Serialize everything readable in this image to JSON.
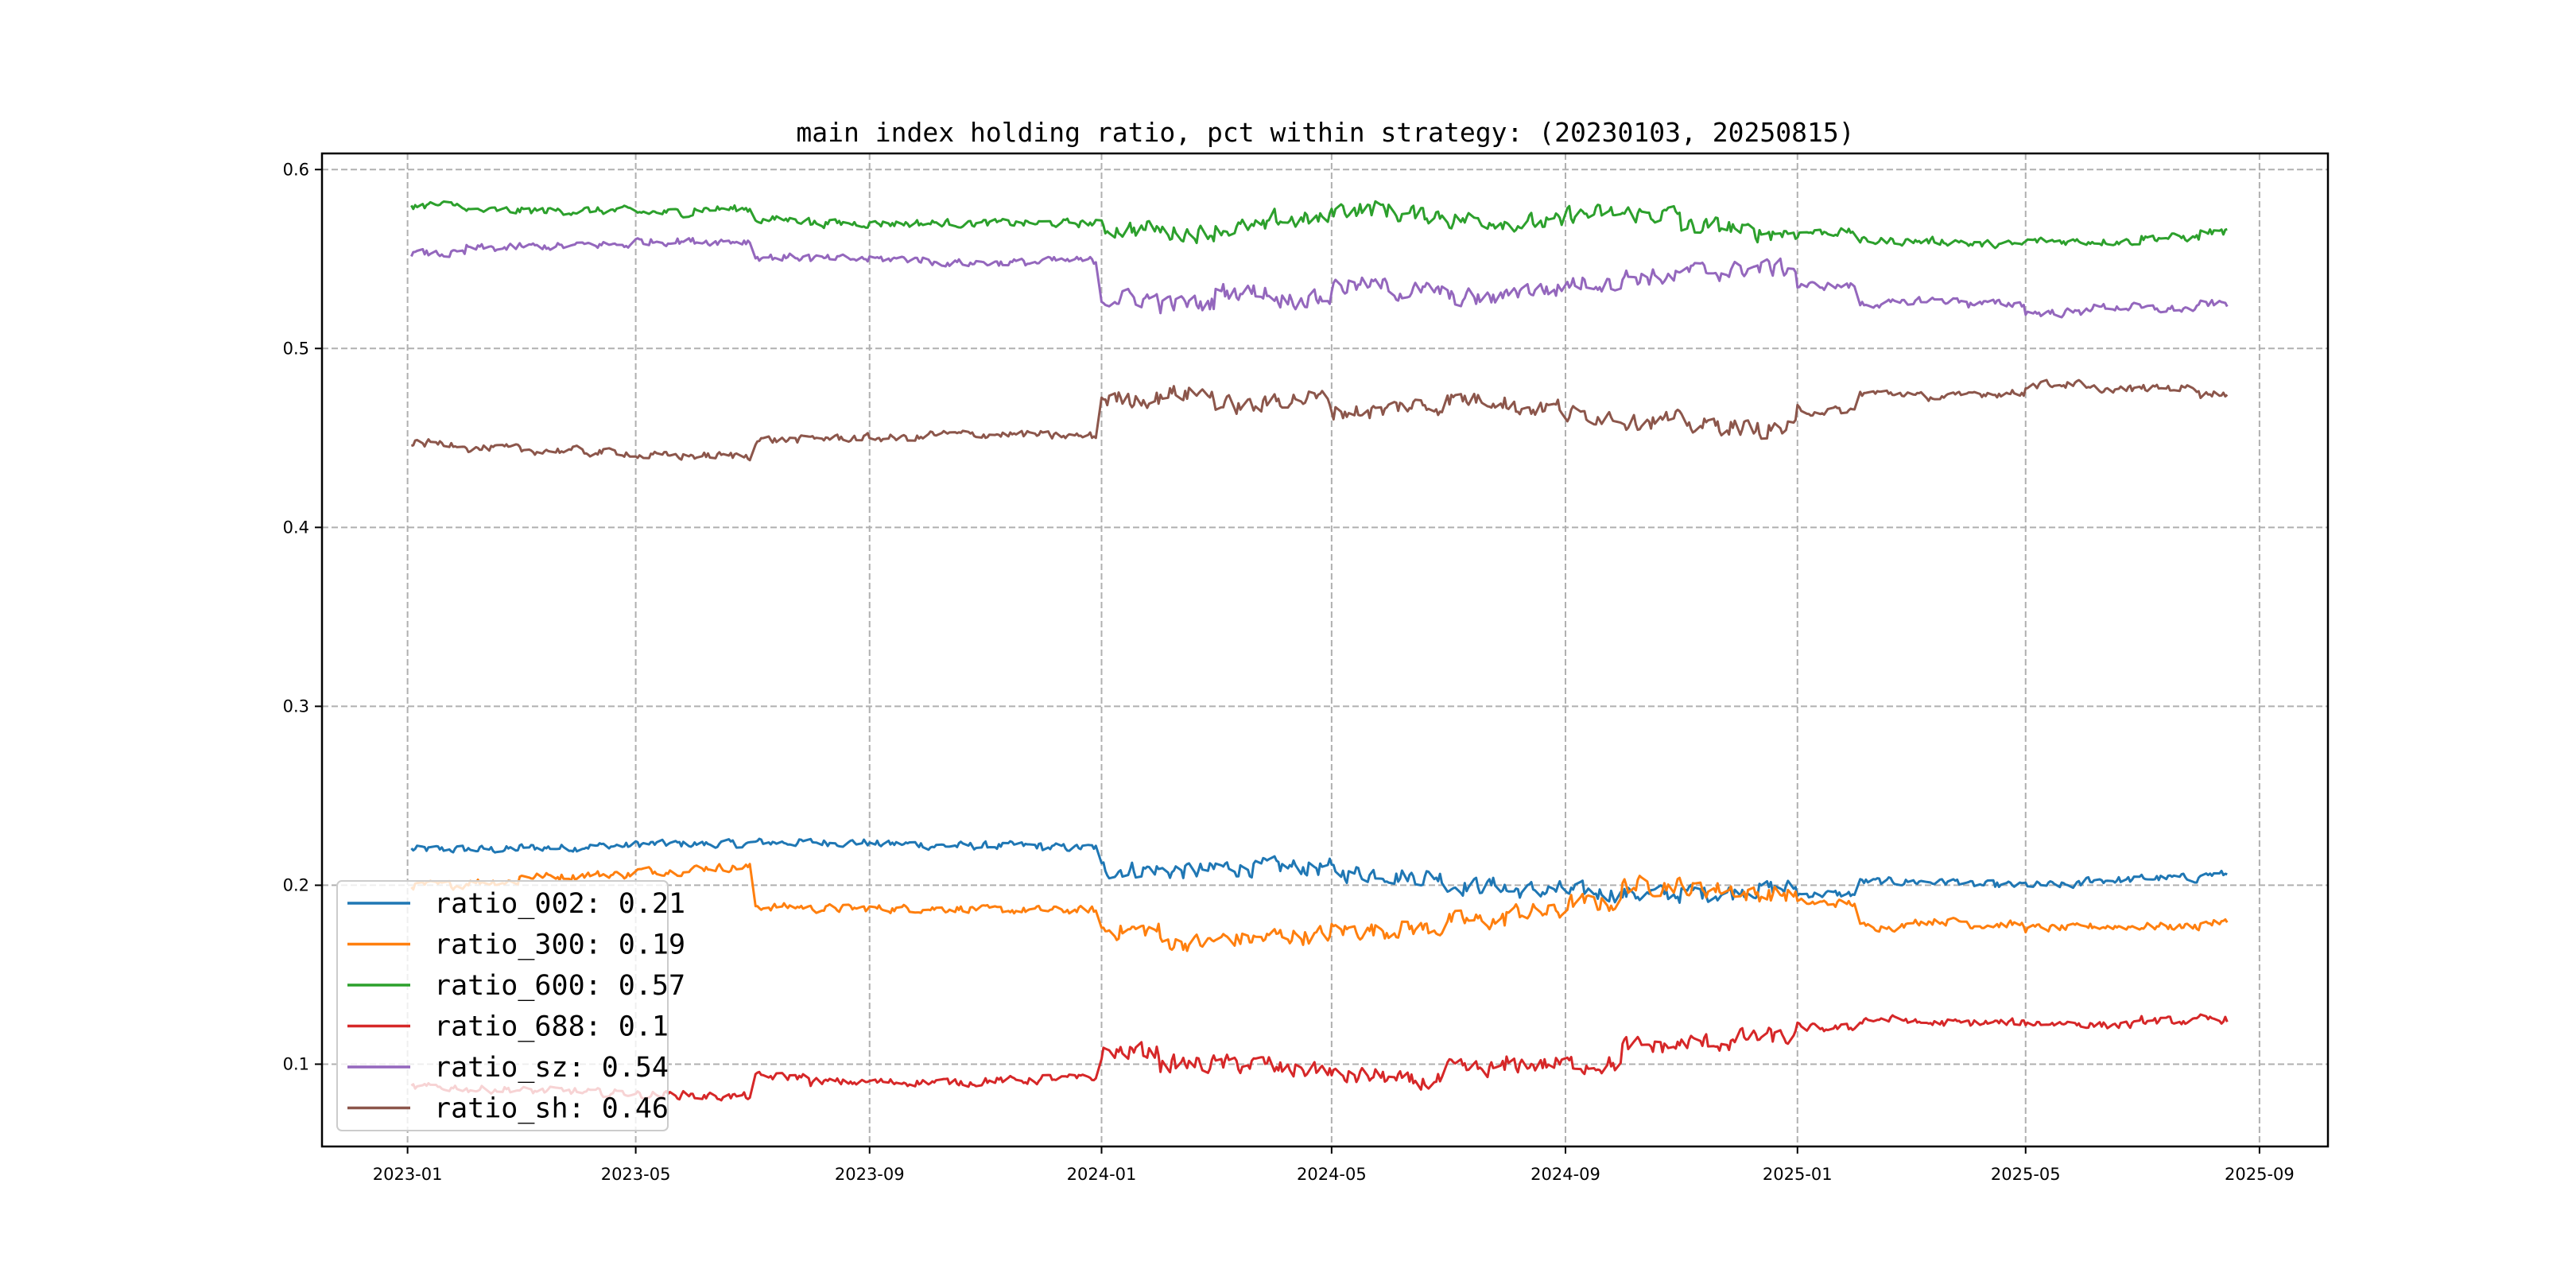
{
  "chart_data": {
    "type": "line",
    "title": "main index holding ratio, pct within strategy: (20230103, 20250815)",
    "xlabel": "",
    "ylabel": "",
    "x_range": [
      "2023-01-03",
      "2025-08-15"
    ],
    "xlim_days_from_2023_01_01": [
      -45,
      1010
    ],
    "ylim": [
      0.054,
      0.609
    ],
    "grid": true,
    "legend_placement": "lower-left",
    "x_ticks": [
      "2023-01",
      "2023-05",
      "2023-09",
      "2024-01",
      "2024-05",
      "2024-09",
      "2025-01",
      "2025-05",
      "2025-09"
    ],
    "y_ticks": [
      "0.1",
      "0.2",
      "0.3",
      "0.4",
      "0.5",
      "0.6"
    ],
    "months": [
      "2023-01",
      "2023-02",
      "2023-03",
      "2023-04",
      "2023-05",
      "2023-06",
      "2023-07",
      "2023-08",
      "2023-09",
      "2023-10",
      "2023-11",
      "2023-12",
      "2024-01",
      "2024-02",
      "2024-03",
      "2024-04",
      "2024-05",
      "2024-06",
      "2024-07",
      "2024-08",
      "2024-09",
      "2024-10",
      "2024-11",
      "2024-12",
      "2025-01",
      "2025-02",
      "2025-03",
      "2025-04",
      "2025-05",
      "2025-06",
      "2025-07",
      "2025-08"
    ],
    "series": [
      {
        "name": "ratio_002",
        "legend": "ratio_002: 0.21",
        "color": "#1f77b4",
        "values": [
          0.22,
          0.22,
          0.221,
          0.222,
          0.223,
          0.223,
          0.224,
          0.224,
          0.223,
          0.222,
          0.222,
          0.221,
          0.209,
          0.208,
          0.21,
          0.21,
          0.207,
          0.205,
          0.2,
          0.197,
          0.196,
          0.195,
          0.196,
          0.198,
          0.195,
          0.202,
          0.202,
          0.2,
          0.2,
          0.203,
          0.204,
          0.206
        ]
      },
      {
        "name": "ratio_300",
        "legend": "ratio_300: 0.19",
        "color": "#ff7f0e",
        "values": [
          0.2,
          0.202,
          0.205,
          0.206,
          0.208,
          0.21,
          0.188,
          0.187,
          0.187,
          0.187,
          0.186,
          0.186,
          0.175,
          0.168,
          0.17,
          0.172,
          0.175,
          0.176,
          0.18,
          0.185,
          0.19,
          0.2,
          0.198,
          0.195,
          0.19,
          0.177,
          0.18,
          0.178,
          0.176,
          0.177,
          0.177,
          0.179
        ]
      },
      {
        "name": "ratio_600",
        "legend": "ratio_600: 0.57",
        "color": "#2ca02c",
        "values": [
          0.58,
          0.577,
          0.577,
          0.577,
          0.576,
          0.578,
          0.572,
          0.57,
          0.57,
          0.57,
          0.57,
          0.57,
          0.567,
          0.565,
          0.567,
          0.572,
          0.578,
          0.575,
          0.572,
          0.57,
          0.575,
          0.575,
          0.568,
          0.565,
          0.565,
          0.56,
          0.56,
          0.558,
          0.56,
          0.56,
          0.562,
          0.565
        ]
      },
      {
        "name": "ratio_688",
        "legend": "ratio_688: 0.1",
        "color": "#d62728",
        "values": [
          0.087,
          0.086,
          0.085,
          0.084,
          0.083,
          0.082,
          0.093,
          0.09,
          0.09,
          0.09,
          0.091,
          0.092,
          0.107,
          0.1,
          0.1,
          0.097,
          0.093,
          0.09,
          0.097,
          0.1,
          0.1,
          0.11,
          0.112,
          0.115,
          0.12,
          0.125,
          0.123,
          0.123,
          0.123,
          0.122,
          0.124,
          0.125
        ]
      },
      {
        "name": "ratio_sz",
        "legend": "ratio_sz: 0.54",
        "color": "#9467bd",
        "values": [
          0.553,
          0.556,
          0.557,
          0.558,
          0.56,
          0.56,
          0.551,
          0.55,
          0.55,
          0.548,
          0.548,
          0.549,
          0.528,
          0.525,
          0.532,
          0.528,
          0.535,
          0.532,
          0.528,
          0.533,
          0.537,
          0.54,
          0.543,
          0.545,
          0.535,
          0.525,
          0.527,
          0.525,
          0.52,
          0.523,
          0.522,
          0.525
        ]
      },
      {
        "name": "ratio_sh",
        "legend": "ratio_sh: 0.46",
        "color": "#8c564b",
        "values": [
          0.447,
          0.444,
          0.443,
          0.442,
          0.44,
          0.44,
          0.449,
          0.45,
          0.45,
          0.452,
          0.452,
          0.451,
          0.472,
          0.475,
          0.468,
          0.472,
          0.465,
          0.468,
          0.472,
          0.467,
          0.463,
          0.46,
          0.457,
          0.455,
          0.465,
          0.475,
          0.473,
          0.475,
          0.48,
          0.477,
          0.478,
          0.475
        ]
      }
    ]
  }
}
